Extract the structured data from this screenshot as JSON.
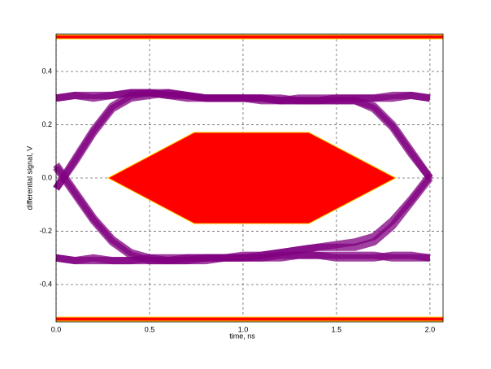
{
  "chart_data": {
    "type": "eye",
    "xlabel": "time, ns",
    "ylabel": "differential signal, V",
    "xlim": [
      0,
      2.07
    ],
    "ylim": [
      -0.54,
      0.54
    ],
    "xticks": [
      {
        "value": 0,
        "label": "0.0"
      },
      0.5,
      {
        "value": 1,
        "label": "1.0"
      },
      1.5,
      {
        "value": 2,
        "label": "2.0"
      }
    ],
    "yticks": [
      -0.4,
      -0.2,
      {
        "value": 0,
        "label": "0.0"
      },
      0.2,
      0.4
    ],
    "grid": true,
    "x": [
      0,
      0.1,
      0.2,
      0.3,
      0.4,
      0.5,
      0.6,
      0.7,
      0.8,
      0.9,
      1.0,
      1.1,
      1.2,
      1.3,
      1.4,
      1.5,
      1.6,
      1.7,
      1.8,
      1.9,
      2.0
    ],
    "trace_color": "#800080",
    "series": [
      {
        "values": [
          0.3,
          0.31,
          0.3,
          0.31,
          0.32,
          0.32,
          0.31,
          0.31,
          0.3,
          0.3,
          0.3,
          0.3,
          0.29,
          0.29,
          0.29,
          0.3,
          0.3,
          0.3,
          0.31,
          0.31,
          0.3
        ]
      },
      {
        "values": [
          -0.04,
          0.06,
          0.17,
          0.26,
          0.3,
          0.31,
          0.32,
          0.31,
          0.3,
          0.3,
          0.3,
          0.29,
          0.29,
          0.3,
          0.3,
          0.3,
          0.3,
          0.3,
          0.3,
          0.31,
          0.3
        ]
      },
      {
        "values": [
          0.3,
          0.31,
          0.31,
          0.31,
          0.32,
          0.32,
          0.31,
          0.3,
          0.3,
          0.3,
          0.3,
          0.3,
          0.29,
          0.29,
          0.29,
          0.29,
          0.29,
          0.27,
          0.2,
          0.1,
          0.0
        ]
      },
      {
        "values": [
          -0.04,
          0.07,
          0.18,
          0.27,
          0.31,
          0.32,
          0.32,
          0.31,
          0.3,
          0.3,
          0.3,
          0.3,
          0.3,
          0.29,
          0.29,
          0.29,
          0.29,
          0.26,
          0.19,
          0.09,
          0.0
        ]
      },
      {
        "values": [
          -0.3,
          -0.31,
          -0.3,
          -0.31,
          -0.31,
          -0.3,
          -0.3,
          -0.3,
          -0.3,
          -0.3,
          -0.3,
          -0.3,
          -0.29,
          -0.29,
          -0.29,
          -0.3,
          -0.3,
          -0.3,
          -0.29,
          -0.29,
          -0.3
        ]
      },
      {
        "values": [
          0.04,
          -0.06,
          -0.16,
          -0.24,
          -0.29,
          -0.31,
          -0.31,
          -0.31,
          -0.31,
          -0.3,
          -0.3,
          -0.3,
          -0.3,
          -0.29,
          -0.29,
          -0.29,
          -0.29,
          -0.29,
          -0.3,
          -0.3,
          -0.3
        ]
      },
      {
        "values": [
          -0.3,
          -0.31,
          -0.31,
          -0.31,
          -0.31,
          -0.31,
          -0.31,
          -0.3,
          -0.3,
          -0.3,
          -0.29,
          -0.29,
          -0.28,
          -0.27,
          -0.26,
          -0.26,
          -0.26,
          -0.24,
          -0.18,
          -0.09,
          0.0
        ]
      },
      {
        "values": [
          0.05,
          -0.05,
          -0.15,
          -0.23,
          -0.28,
          -0.3,
          -0.31,
          -0.31,
          -0.3,
          -0.3,
          -0.3,
          -0.29,
          -0.28,
          -0.27,
          -0.26,
          -0.25,
          -0.24,
          -0.22,
          -0.16,
          -0.08,
          0.01
        ]
      }
    ],
    "mask_color": "#ff0000",
    "mask_edge": "#ffd000",
    "masks": [
      {
        "x": [
          0.278,
          0.739,
          1.352,
          1.817,
          1.352,
          0.739
        ],
        "y": [
          0,
          0.171,
          0.171,
          0,
          -0.171,
          -0.171
        ]
      },
      {
        "x": [
          0,
          2.07,
          2.07,
          0
        ],
        "y": [
          0.537,
          0.537,
          0.522,
          0.522
        ]
      },
      {
        "x": [
          0,
          2.07,
          2.07,
          0
        ],
        "y": [
          -0.522,
          -0.522,
          -0.537,
          -0.537
        ]
      }
    ]
  }
}
